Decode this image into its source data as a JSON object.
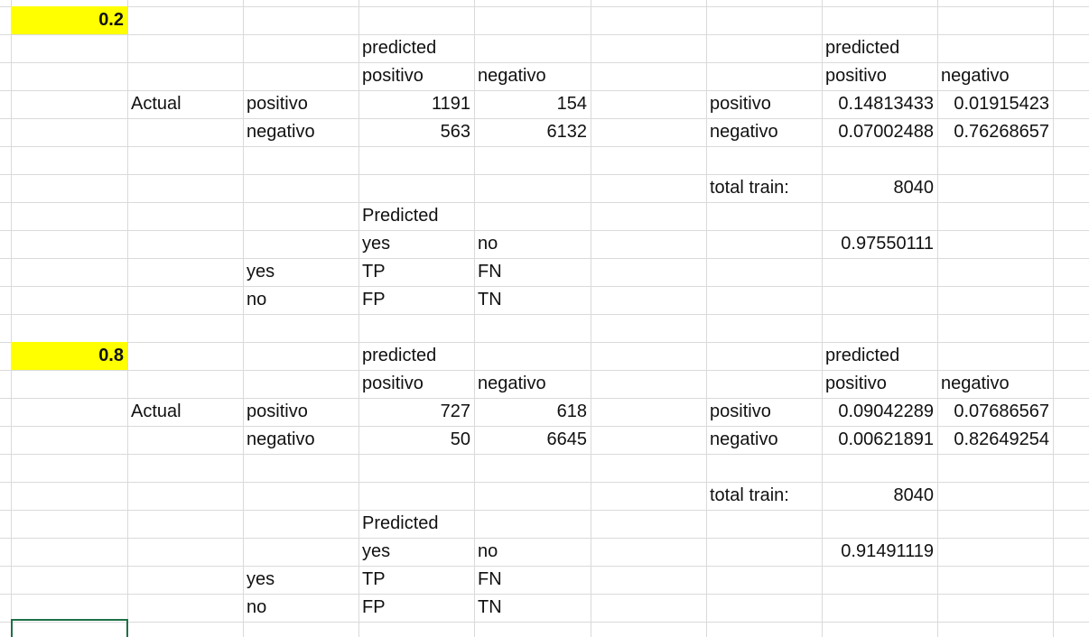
{
  "cells": [
    {
      "r": 0,
      "c": 0,
      "v": "0.2",
      "align": "num",
      "style": "yellow"
    },
    {
      "r": 1,
      "c": 3,
      "v": "predicted"
    },
    {
      "r": 1,
      "c": 7,
      "v": "predicted"
    },
    {
      "r": 2,
      "c": 3,
      "v": "positivo"
    },
    {
      "r": 2,
      "c": 4,
      "v": "negativo"
    },
    {
      "r": 2,
      "c": 7,
      "v": "positivo"
    },
    {
      "r": 2,
      "c": 8,
      "v": "negativo"
    },
    {
      "r": 3,
      "c": 1,
      "v": "Actual"
    },
    {
      "r": 3,
      "c": 2,
      "v": "positivo"
    },
    {
      "r": 3,
      "c": 3,
      "v": "1191",
      "align": "num"
    },
    {
      "r": 3,
      "c": 4,
      "v": "154",
      "align": "num"
    },
    {
      "r": 3,
      "c": 6,
      "v": "positivo"
    },
    {
      "r": 3,
      "c": 7,
      "v": "0.14813433",
      "align": "num"
    },
    {
      "r": 3,
      "c": 8,
      "v": "0.01915423",
      "align": "num"
    },
    {
      "r": 4,
      "c": 2,
      "v": "negativo"
    },
    {
      "r": 4,
      "c": 3,
      "v": "563",
      "align": "num"
    },
    {
      "r": 4,
      "c": 4,
      "v": "6132",
      "align": "num"
    },
    {
      "r": 4,
      "c": 6,
      "v": "negativo"
    },
    {
      "r": 4,
      "c": 7,
      "v": "0.07002488",
      "align": "num"
    },
    {
      "r": 4,
      "c": 8,
      "v": "0.76268657",
      "align": "num"
    },
    {
      "r": 6,
      "c": 6,
      "v": "total train:"
    },
    {
      "r": 6,
      "c": 7,
      "v": "8040",
      "align": "num"
    },
    {
      "r": 7,
      "c": 3,
      "v": "Predicted"
    },
    {
      "r": 8,
      "c": 3,
      "v": "yes"
    },
    {
      "r": 8,
      "c": 4,
      "v": "no"
    },
    {
      "r": 8,
      "c": 7,
      "v": "0.97550111",
      "align": "num"
    },
    {
      "r": 9,
      "c": 2,
      "v": "yes"
    },
    {
      "r": 9,
      "c": 3,
      "v": "TP"
    },
    {
      "r": 9,
      "c": 4,
      "v": "FN"
    },
    {
      "r": 10,
      "c": 2,
      "v": "no"
    },
    {
      "r": 10,
      "c": 3,
      "v": "FP"
    },
    {
      "r": 10,
      "c": 4,
      "v": "TN"
    },
    {
      "r": 12,
      "c": 0,
      "v": "0.8",
      "align": "num",
      "style": "yellow"
    },
    {
      "r": 12,
      "c": 3,
      "v": "predicted"
    },
    {
      "r": 12,
      "c": 7,
      "v": "predicted"
    },
    {
      "r": 13,
      "c": 3,
      "v": "positivo"
    },
    {
      "r": 13,
      "c": 4,
      "v": "negativo"
    },
    {
      "r": 13,
      "c": 7,
      "v": "positivo"
    },
    {
      "r": 13,
      "c": 8,
      "v": "negativo"
    },
    {
      "r": 14,
      "c": 1,
      "v": "Actual"
    },
    {
      "r": 14,
      "c": 2,
      "v": "positivo"
    },
    {
      "r": 14,
      "c": 3,
      "v": "727",
      "align": "num"
    },
    {
      "r": 14,
      "c": 4,
      "v": "618",
      "align": "num"
    },
    {
      "r": 14,
      "c": 6,
      "v": "positivo"
    },
    {
      "r": 14,
      "c": 7,
      "v": "0.09042289",
      "align": "num"
    },
    {
      "r": 14,
      "c": 8,
      "v": "0.07686567",
      "align": "num"
    },
    {
      "r": 15,
      "c": 2,
      "v": "negativo"
    },
    {
      "r": 15,
      "c": 3,
      "v": "50",
      "align": "num"
    },
    {
      "r": 15,
      "c": 4,
      "v": "6645",
      "align": "num"
    },
    {
      "r": 15,
      "c": 6,
      "v": "negativo"
    },
    {
      "r": 15,
      "c": 7,
      "v": "0.00621891",
      "align": "num"
    },
    {
      "r": 15,
      "c": 8,
      "v": "0.82649254",
      "align": "num"
    },
    {
      "r": 17,
      "c": 6,
      "v": "total train:"
    },
    {
      "r": 17,
      "c": 7,
      "v": "8040",
      "align": "num"
    },
    {
      "r": 18,
      "c": 3,
      "v": "Predicted"
    },
    {
      "r": 19,
      "c": 3,
      "v": "yes"
    },
    {
      "r": 19,
      "c": 4,
      "v": "no"
    },
    {
      "r": 19,
      "c": 7,
      "v": "0.91491119",
      "align": "num"
    },
    {
      "r": 20,
      "c": 2,
      "v": "yes"
    },
    {
      "r": 20,
      "c": 3,
      "v": "TP"
    },
    {
      "r": 20,
      "c": 4,
      "v": "FN"
    },
    {
      "r": 21,
      "c": 2,
      "v": "no"
    },
    {
      "r": 21,
      "c": 3,
      "v": "FP"
    },
    {
      "r": 21,
      "c": 4,
      "v": "TN"
    }
  ],
  "colors": {
    "highlight": "#ffff00",
    "gridline": "#dadada",
    "selection_border": "#1e7145"
  }
}
